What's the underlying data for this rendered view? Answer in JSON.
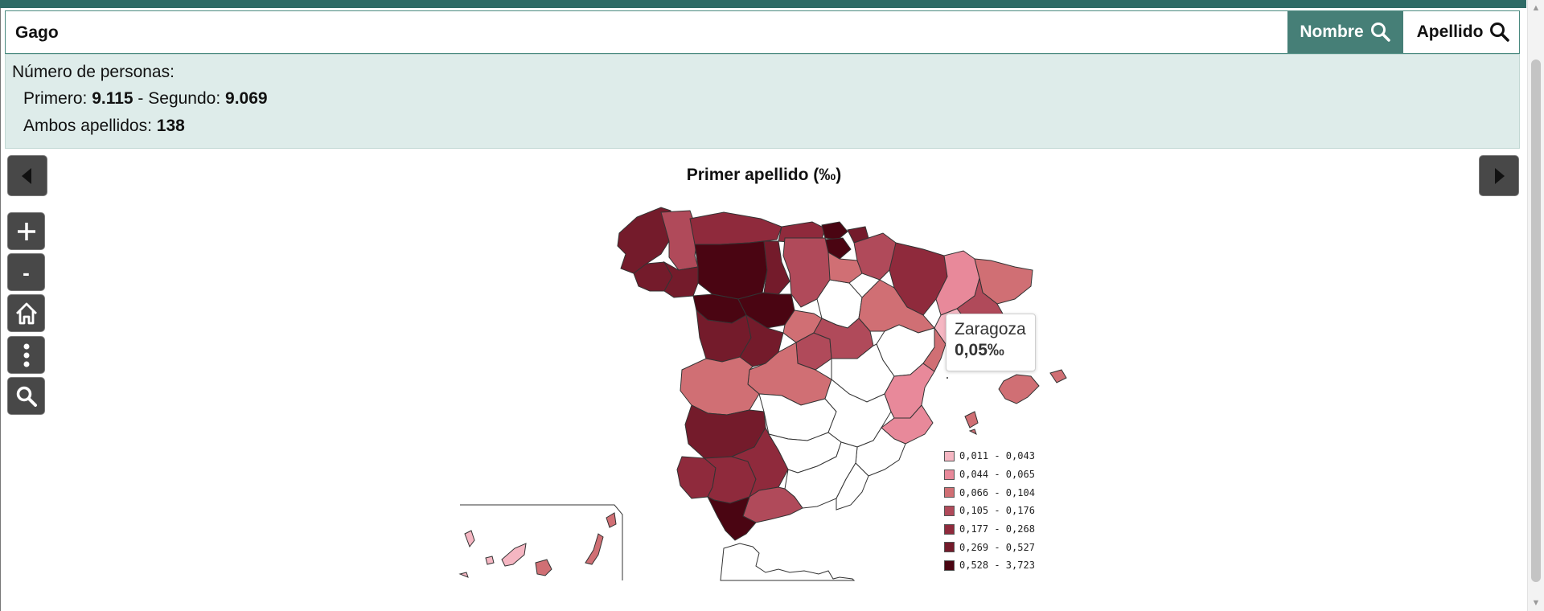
{
  "search": {
    "value": "Gago"
  },
  "buttons": {
    "nombre": "Nombre",
    "apellido": "Apellido"
  },
  "info": {
    "heading": "Número de personas:",
    "primero_label": "Primero: ",
    "primero_value": "9.115",
    "separator": " - Segundo: ",
    "segundo_value": "9.069",
    "ambos_label": "Ambos apellidos: ",
    "ambos_value": "138"
  },
  "map": {
    "title": "Primer apellido (‰)",
    "tooltip": {
      "name": "Zaragoza",
      "value": "0,05‰"
    },
    "legend": [
      {
        "label": "0,011 - 0,043",
        "color": "#f5b6c2"
      },
      {
        "label": "0,044 - 0,065",
        "color": "#e8899a"
      },
      {
        "label": "0,066 - 0,104",
        "color": "#d06f74"
      },
      {
        "label": "0,105 - 0,176",
        "color": "#b04a5a"
      },
      {
        "label": "0,177 - 0,268",
        "color": "#8f2a3c"
      },
      {
        "label": "0,269 - 0,527",
        "color": "#741b2b"
      },
      {
        "label": "0,528 - 3,723",
        "color": "#4a0512"
      }
    ],
    "no_data_color": "#ffffff"
  },
  "tools": [
    "zoom-in",
    "zoom-out",
    "home",
    "more",
    "search"
  ],
  "icons": {
    "zoom_out_glyph": "-"
  }
}
